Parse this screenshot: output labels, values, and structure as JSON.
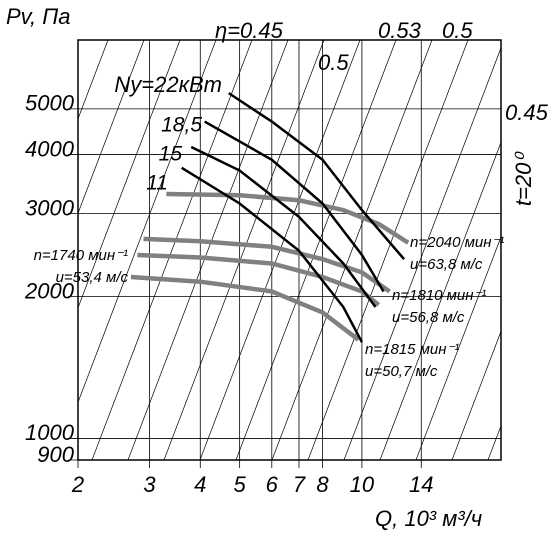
{
  "chart_data": {
    "type": "line",
    "y_label": "Pv, Па",
    "x_label": "Q, 10³ м³/ч",
    "log_x": true,
    "log_y": true,
    "grid": true,
    "xlim": [
      2,
      22
    ],
    "ylim": [
      900,
      7000
    ],
    "xticks": [
      2,
      3,
      4,
      5,
      6,
      7,
      8,
      10,
      14
    ],
    "yticks": [
      900,
      1000,
      2000,
      3000,
      4000,
      5000
    ],
    "series": [
      {
        "name": "n=2040 мин⁻¹",
        "speed": "u=63,8 м/с",
        "color": "#808080",
        "x": [
          3.3,
          5,
          7,
          9,
          11,
          13
        ],
        "values": [
          3300,
          3280,
          3200,
          3050,
          2850,
          2600
        ]
      },
      {
        "name": "n=1810 мин⁻¹",
        "speed": "u=56,8 м/с",
        "color": "#808080",
        "x": [
          2.9,
          4,
          6,
          8,
          10,
          11.7
        ],
        "values": [
          2650,
          2620,
          2550,
          2400,
          2250,
          2050
        ]
      },
      {
        "name": "n=1740 мин⁻¹",
        "speed": "u=53,4 м/с",
        "color": "#808080",
        "x": [
          2.8,
          4,
          6,
          8,
          10,
          11
        ],
        "values": [
          2450,
          2420,
          2350,
          2200,
          2050,
          1920
        ]
      },
      {
        "name": "n=1815 мин⁻¹",
        "speed": "u=50,7 м/с",
        "color": "#808080",
        "x": [
          2.7,
          4,
          6,
          8,
          9.8
        ],
        "values": [
          2200,
          2150,
          2050,
          1850,
          1620
        ]
      },
      {
        "name": "Ny=22кВт",
        "color": "#000000",
        "x": [
          4.7,
          6,
          8,
          10,
          12.7
        ],
        "values": [
          5400,
          4700,
          3900,
          3050,
          2400
        ]
      },
      {
        "name": "18,5",
        "color": "#000000",
        "x": [
          4.1,
          6,
          8,
          10,
          11.3
        ],
        "values": [
          4700,
          3900,
          3150,
          2450,
          2050
        ]
      },
      {
        "name": "15",
        "color": "#000000",
        "x": [
          3.8,
          5,
          7,
          9,
          10.8
        ],
        "values": [
          4150,
          3700,
          2950,
          2350,
          1900
        ]
      },
      {
        "name": "11",
        "color": "#000000",
        "x": [
          3.6,
          5,
          7,
          9,
          10
        ],
        "values": [
          3750,
          3150,
          2500,
          1900,
          1600
        ]
      }
    ],
    "annotations": [
      "η=0.45",
      "0.5",
      "0.53",
      "0.5",
      "0.45",
      "t=20⁰"
    ]
  }
}
